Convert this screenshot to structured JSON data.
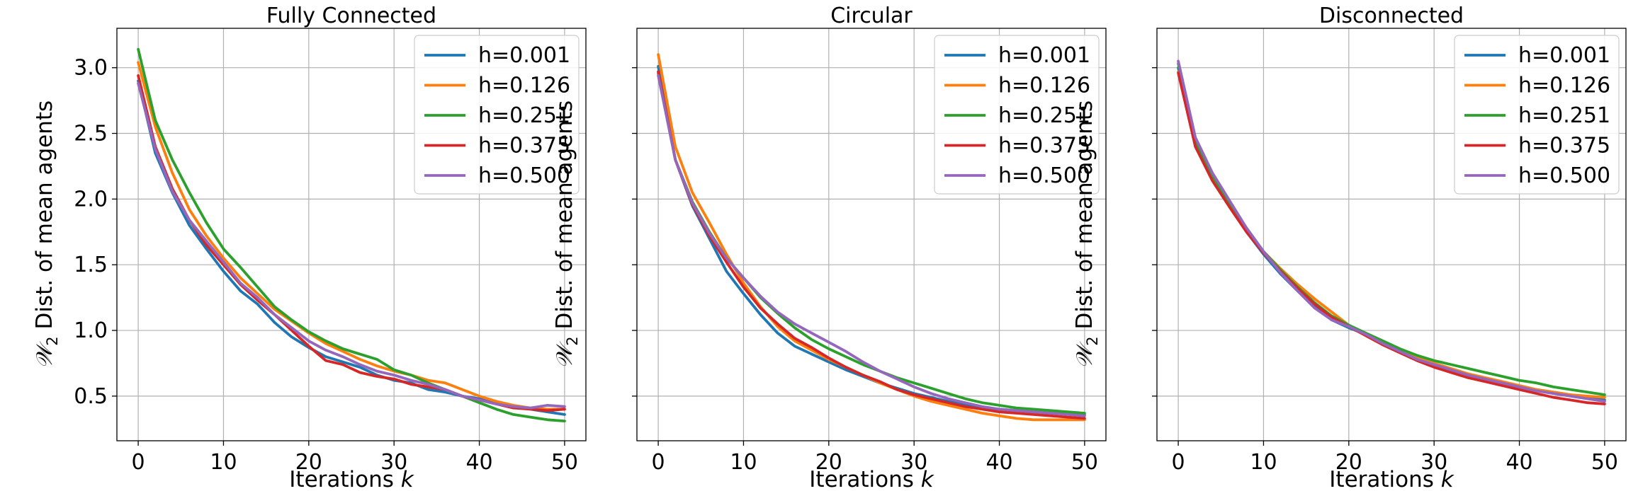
{
  "figure": {
    "xlabel_prefix": "Iterations ",
    "xlabel_var": "k",
    "ylabel_symbol": "𝒲",
    "ylabel_sub": "2",
    "ylabel_rest": " Dist. of mean agents",
    "series_colors": [
      "#1f77b4",
      "#ff7f0e",
      "#2ca02c",
      "#d62728",
      "#9467bd"
    ]
  },
  "chart_data": [
    {
      "type": "line",
      "title": "Fully Connected",
      "xlabel": "Iterations k",
      "ylabel": "W2 Dist. of mean agents",
      "xlim": [
        -2.5,
        52.5
      ],
      "ylim": [
        0.16,
        3.3
      ],
      "xticks": [
        0,
        10,
        20,
        30,
        40,
        50
      ],
      "yticks": [
        0.5,
        1.0,
        1.5,
        2.0,
        2.5,
        3.0
      ],
      "ytick_labels": [
        "0.5",
        "1.0",
        "1.5",
        "2.0",
        "2.5",
        "3.0"
      ],
      "grid": true,
      "legend_position": "top-right",
      "x": [
        0,
        2,
        4,
        6,
        8,
        10,
        12,
        14,
        16,
        18,
        20,
        22,
        24,
        26,
        28,
        30,
        32,
        34,
        36,
        38,
        40,
        42,
        44,
        46,
        48,
        50
      ],
      "series": [
        {
          "name": "h=0.001",
          "values": [
            2.9,
            2.35,
            2.05,
            1.8,
            1.62,
            1.45,
            1.3,
            1.2,
            1.06,
            0.95,
            0.87,
            0.8,
            0.76,
            0.72,
            0.66,
            0.62,
            0.6,
            0.55,
            0.53,
            0.5,
            0.48,
            0.46,
            0.42,
            0.4,
            0.38,
            0.36
          ]
        },
        {
          "name": "h=0.126",
          "values": [
            3.04,
            2.55,
            2.2,
            1.92,
            1.72,
            1.55,
            1.4,
            1.28,
            1.16,
            1.07,
            0.98,
            0.9,
            0.84,
            0.78,
            0.73,
            0.69,
            0.66,
            0.62,
            0.6,
            0.55,
            0.5,
            0.46,
            0.43,
            0.41,
            0.4,
            0.4
          ]
        },
        {
          "name": "h=0.251",
          "values": [
            3.14,
            2.6,
            2.3,
            2.05,
            1.82,
            1.62,
            1.48,
            1.33,
            1.18,
            1.08,
            0.99,
            0.92,
            0.86,
            0.82,
            0.78,
            0.7,
            0.66,
            0.6,
            0.55,
            0.5,
            0.45,
            0.4,
            0.36,
            0.34,
            0.32,
            0.31
          ]
        },
        {
          "name": "h=0.375",
          "values": [
            2.94,
            2.4,
            2.08,
            1.84,
            1.65,
            1.5,
            1.35,
            1.23,
            1.12,
            1.0,
            0.88,
            0.77,
            0.74,
            0.68,
            0.65,
            0.63,
            0.59,
            0.57,
            0.55,
            0.5,
            0.47,
            0.44,
            0.41,
            0.4,
            0.39,
            0.4
          ]
        },
        {
          "name": "h=0.500",
          "values": [
            2.88,
            2.38,
            2.06,
            1.84,
            1.68,
            1.52,
            1.36,
            1.25,
            1.12,
            1.02,
            0.92,
            0.85,
            0.8,
            0.74,
            0.69,
            0.66,
            0.62,
            0.59,
            0.55,
            0.5,
            0.47,
            0.44,
            0.42,
            0.41,
            0.43,
            0.42
          ]
        }
      ]
    },
    {
      "type": "line",
      "title": "Circular",
      "xlabel": "Iterations k",
      "ylabel": "W2 Dist. of mean agents",
      "xlim": [
        -2.5,
        52.5
      ],
      "ylim": [
        0.16,
        3.3
      ],
      "xticks": [
        0,
        10,
        20,
        30,
        40,
        50
      ],
      "yticks": [
        0.5,
        1.0,
        1.5,
        2.0,
        2.5,
        3.0
      ],
      "ytick_labels": [
        "",
        "",
        "",
        "",
        "",
        ""
      ],
      "grid": true,
      "legend_position": "top-right",
      "x": [
        0,
        2,
        4,
        6,
        8,
        10,
        12,
        14,
        16,
        18,
        20,
        22,
        24,
        26,
        28,
        30,
        32,
        34,
        36,
        38,
        40,
        42,
        44,
        46,
        48,
        50
      ],
      "series": [
        {
          "name": "h=0.001",
          "values": [
            3.01,
            2.3,
            1.95,
            1.7,
            1.45,
            1.28,
            1.12,
            0.98,
            0.88,
            0.82,
            0.76,
            0.7,
            0.65,
            0.6,
            0.56,
            0.52,
            0.49,
            0.46,
            0.43,
            0.41,
            0.4,
            0.39,
            0.38,
            0.37,
            0.37,
            0.36
          ]
        },
        {
          "name": "h=0.126",
          "values": [
            3.1,
            2.4,
            2.05,
            1.82,
            1.58,
            1.36,
            1.18,
            1.03,
            0.92,
            0.85,
            0.78,
            0.72,
            0.66,
            0.6,
            0.55,
            0.5,
            0.46,
            0.43,
            0.4,
            0.37,
            0.35,
            0.33,
            0.32,
            0.32,
            0.32,
            0.32
          ]
        },
        {
          "name": "h=0.251",
          "values": [
            2.96,
            2.3,
            1.98,
            1.75,
            1.55,
            1.4,
            1.25,
            1.13,
            1.02,
            0.93,
            0.86,
            0.8,
            0.74,
            0.69,
            0.64,
            0.6,
            0.56,
            0.52,
            0.48,
            0.45,
            0.43,
            0.41,
            0.4,
            0.39,
            0.38,
            0.37
          ]
        },
        {
          "name": "h=0.375",
          "values": [
            2.97,
            2.3,
            1.96,
            1.72,
            1.52,
            1.33,
            1.17,
            1.05,
            0.94,
            0.87,
            0.79,
            0.72,
            0.66,
            0.61,
            0.55,
            0.51,
            0.48,
            0.45,
            0.42,
            0.4,
            0.38,
            0.37,
            0.36,
            0.35,
            0.34,
            0.33
          ]
        },
        {
          "name": "h=0.500",
          "values": [
            2.94,
            2.3,
            1.97,
            1.74,
            1.55,
            1.4,
            1.26,
            1.14,
            1.05,
            0.98,
            0.91,
            0.84,
            0.76,
            0.69,
            0.63,
            0.57,
            0.52,
            0.48,
            0.45,
            0.42,
            0.4,
            0.39,
            0.38,
            0.37,
            0.36,
            0.35
          ]
        }
      ]
    },
    {
      "type": "line",
      "title": "Disconnected",
      "xlabel": "Iterations k",
      "ylabel": "W2 Dist. of mean agents",
      "xlim": [
        -2.5,
        52.5
      ],
      "ylim": [
        0.16,
        3.3
      ],
      "xticks": [
        0,
        10,
        20,
        30,
        40,
        50
      ],
      "yticks": [
        0.5,
        1.0,
        1.5,
        2.0,
        2.5,
        3.0
      ],
      "ytick_labels": [
        "",
        "",
        "",
        "",
        "",
        ""
      ],
      "grid": true,
      "legend_position": "top-right",
      "x": [
        0,
        2,
        4,
        6,
        8,
        10,
        12,
        14,
        16,
        18,
        20,
        22,
        24,
        26,
        28,
        30,
        32,
        34,
        36,
        38,
        40,
        42,
        44,
        46,
        48,
        50
      ],
      "series": [
        {
          "name": "h=0.001",
          "values": [
            3.0,
            2.4,
            2.15,
            1.95,
            1.75,
            1.58,
            1.43,
            1.3,
            1.18,
            1.08,
            1.02,
            0.97,
            0.9,
            0.84,
            0.78,
            0.74,
            0.7,
            0.66,
            0.62,
            0.59,
            0.57,
            0.55,
            0.53,
            0.51,
            0.49,
            0.47
          ]
        },
        {
          "name": "h=0.126",
          "values": [
            2.97,
            2.42,
            2.16,
            1.96,
            1.78,
            1.6,
            1.47,
            1.35,
            1.24,
            1.14,
            1.04,
            0.96,
            0.89,
            0.84,
            0.79,
            0.75,
            0.71,
            0.67,
            0.64,
            0.61,
            0.58,
            0.55,
            0.53,
            0.51,
            0.5,
            0.49
          ]
        },
        {
          "name": "h=0.251",
          "values": [
            3.03,
            2.44,
            2.18,
            1.97,
            1.78,
            1.6,
            1.46,
            1.33,
            1.21,
            1.11,
            1.04,
            0.98,
            0.92,
            0.86,
            0.81,
            0.77,
            0.74,
            0.71,
            0.68,
            0.65,
            0.62,
            0.6,
            0.57,
            0.55,
            0.53,
            0.51
          ]
        },
        {
          "name": "h=0.375",
          "values": [
            2.96,
            2.4,
            2.14,
            1.94,
            1.75,
            1.59,
            1.45,
            1.32,
            1.2,
            1.1,
            1.03,
            0.96,
            0.89,
            0.83,
            0.77,
            0.72,
            0.68,
            0.64,
            0.61,
            0.58,
            0.55,
            0.52,
            0.49,
            0.47,
            0.45,
            0.44
          ]
        },
        {
          "name": "h=0.500",
          "values": [
            3.05,
            2.47,
            2.2,
            1.99,
            1.78,
            1.6,
            1.44,
            1.3,
            1.17,
            1.08,
            1.03,
            0.97,
            0.9,
            0.84,
            0.78,
            0.74,
            0.7,
            0.66,
            0.63,
            0.6,
            0.57,
            0.54,
            0.52,
            0.5,
            0.48,
            0.46
          ]
        }
      ]
    }
  ]
}
